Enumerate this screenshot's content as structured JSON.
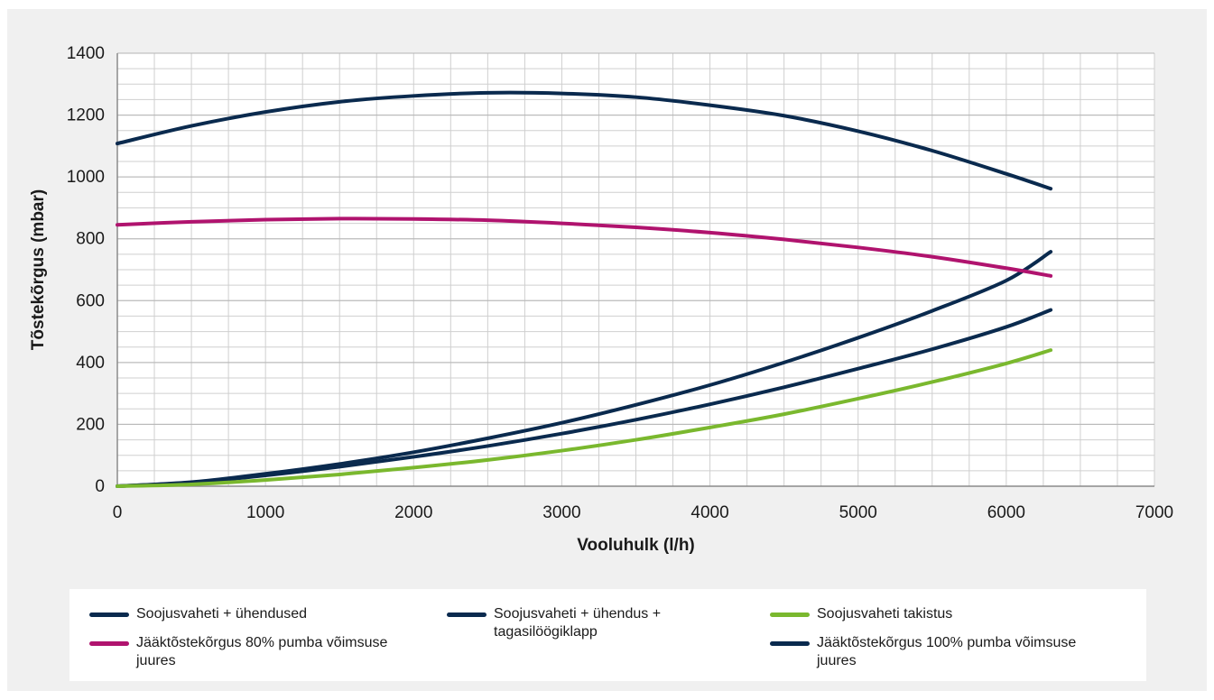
{
  "chart_data": {
    "type": "line",
    "title": "",
    "xlabel": "Vooluhulk (l/h)",
    "ylabel": "Tõstekõrgus (mbar)",
    "xlim": [
      0,
      7000
    ],
    "ylim": [
      0,
      1400
    ],
    "x_ticks": [
      "0",
      "1000",
      "2000",
      "3000",
      "4000",
      "5000",
      "6000",
      "7000"
    ],
    "y_ticks": [
      "0",
      "200",
      "400",
      "600",
      "800",
      "1000",
      "1200",
      "1400"
    ],
    "grid": true,
    "legend_position": "bottom",
    "series": [
      {
        "name": "Soojusvaheti + ühendused",
        "color": "#0a2a4e",
        "x": [
          0,
          500,
          1000,
          1500,
          2000,
          2500,
          3000,
          3500,
          4000,
          4500,
          5000,
          5500,
          6000,
          6300
        ],
        "y": [
          0,
          13,
          40,
          72,
          110,
          155,
          205,
          263,
          327,
          400,
          480,
          567,
          665,
          758
        ]
      },
      {
        "name": "Soojusvaheti + ühendus + tagasilöögiklapp",
        "color": "#0a2a4e",
        "x": [
          0,
          500,
          1000,
          1500,
          2000,
          2500,
          3000,
          3500,
          4000,
          4500,
          5000,
          5500,
          6000,
          6300
        ],
        "y": [
          0,
          12,
          35,
          63,
          95,
          130,
          170,
          215,
          265,
          320,
          380,
          443,
          515,
          570
        ]
      },
      {
        "name": "Soojusvaheti takistus",
        "color": "#7ab82e",
        "x": [
          0,
          500,
          1000,
          1500,
          2000,
          2500,
          3000,
          3500,
          4000,
          4500,
          5000,
          5500,
          6000,
          6300
        ],
        "y": [
          0,
          6,
          20,
          38,
          60,
          85,
          115,
          150,
          190,
          233,
          283,
          337,
          397,
          440
        ]
      },
      {
        "name": "Jääktõstekõrgus 80% pumba võimsuse juures",
        "color": "#b0136e",
        "x": [
          0,
          500,
          1000,
          1500,
          2000,
          2500,
          3000,
          3500,
          4000,
          4500,
          5000,
          5500,
          6000,
          6300
        ],
        "y": [
          845,
          855,
          862,
          865,
          864,
          860,
          850,
          837,
          820,
          798,
          772,
          742,
          705,
          680
        ]
      },
      {
        "name": "Jääktõstekõrgus 100% pumba võimsuse juures",
        "color": "#0a2a4e",
        "x": [
          0,
          500,
          1000,
          1500,
          2000,
          2500,
          3000,
          3500,
          4000,
          4500,
          5000,
          5500,
          6000,
          6300
        ],
        "y": [
          1108,
          1165,
          1210,
          1243,
          1262,
          1272,
          1270,
          1258,
          1232,
          1198,
          1148,
          1085,
          1010,
          962
        ]
      }
    ]
  },
  "legend": {
    "items": [
      {
        "label": "Soojusvaheti + ühendused",
        "color": "#0a2a4e"
      },
      {
        "label": "Soojusvaheti + ühendus + tagasilöögiklapp",
        "color": "#0a2a4e"
      },
      {
        "label": "Soojusvaheti takistus",
        "color": "#7ab82e"
      },
      {
        "label": "Jääktõstekõrgus 80% pumba võimsuse juures",
        "color": "#b0136e"
      },
      {
        "label": "Jääktõstekõrgus 100% pumba võimsuse juures",
        "color": "#0a2a4e"
      }
    ]
  }
}
